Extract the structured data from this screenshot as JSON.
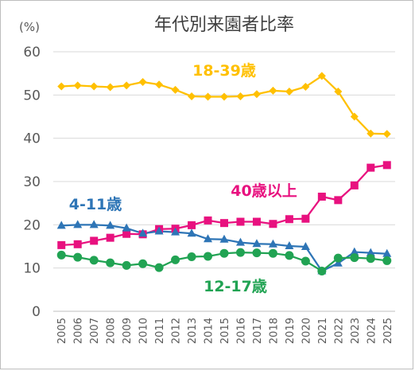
{
  "chart_data": {
    "type": "line",
    "title": "年代別来園者比率",
    "unit_label": "(%)",
    "ylim": [
      0,
      60
    ],
    "yticks": [
      0,
      10,
      20,
      30,
      40,
      50,
      60
    ],
    "grid": "horizontal",
    "legend": "inline labels",
    "x": [
      "2005",
      "2006",
      "2007",
      "2008",
      "2009",
      "2010",
      "2011",
      "2012",
      "2013",
      "2014",
      "2015",
      "2016",
      "2017",
      "2018",
      "2019",
      "2020",
      "2021",
      "2022",
      "2023",
      "2024",
      "2025"
    ],
    "series": [
      {
        "name": "18-39歳",
        "color": "#FFC000",
        "marker": "diamond",
        "values": [
          52.0,
          52.2,
          52.0,
          51.8,
          52.2,
          53.0,
          52.4,
          51.2,
          49.7,
          49.6,
          49.6,
          49.7,
          50.2,
          51.0,
          50.8,
          51.9,
          54.4,
          50.8,
          45.0,
          41.1,
          41.0
        ]
      },
      {
        "name": "40歳以上",
        "color": "#E8117F",
        "marker": "square",
        "values": [
          15.3,
          15.5,
          16.3,
          17.0,
          17.9,
          17.8,
          19.0,
          19.1,
          19.9,
          21.0,
          20.4,
          20.7,
          20.7,
          20.2,
          21.3,
          21.4,
          26.5,
          25.7,
          29.1,
          33.2,
          33.8
        ]
      },
      {
        "name": "4-11歳",
        "color": "#2E75B6",
        "marker": "triangle",
        "values": [
          19.8,
          20.0,
          20.0,
          19.8,
          19.2,
          18.0,
          18.5,
          18.3,
          18.0,
          16.7,
          16.6,
          15.9,
          15.6,
          15.5,
          15.1,
          14.9,
          9.3,
          11.1,
          13.7,
          13.5,
          13.3
        ]
      },
      {
        "name": "12-17歳",
        "color": "#21A353",
        "marker": "circle",
        "values": [
          13.0,
          12.5,
          11.8,
          11.2,
          10.6,
          11.0,
          10.1,
          11.9,
          12.6,
          12.7,
          13.4,
          13.6,
          13.5,
          13.4,
          12.9,
          11.6,
          9.3,
          12.3,
          12.4,
          12.2,
          11.7
        ]
      }
    ]
  }
}
